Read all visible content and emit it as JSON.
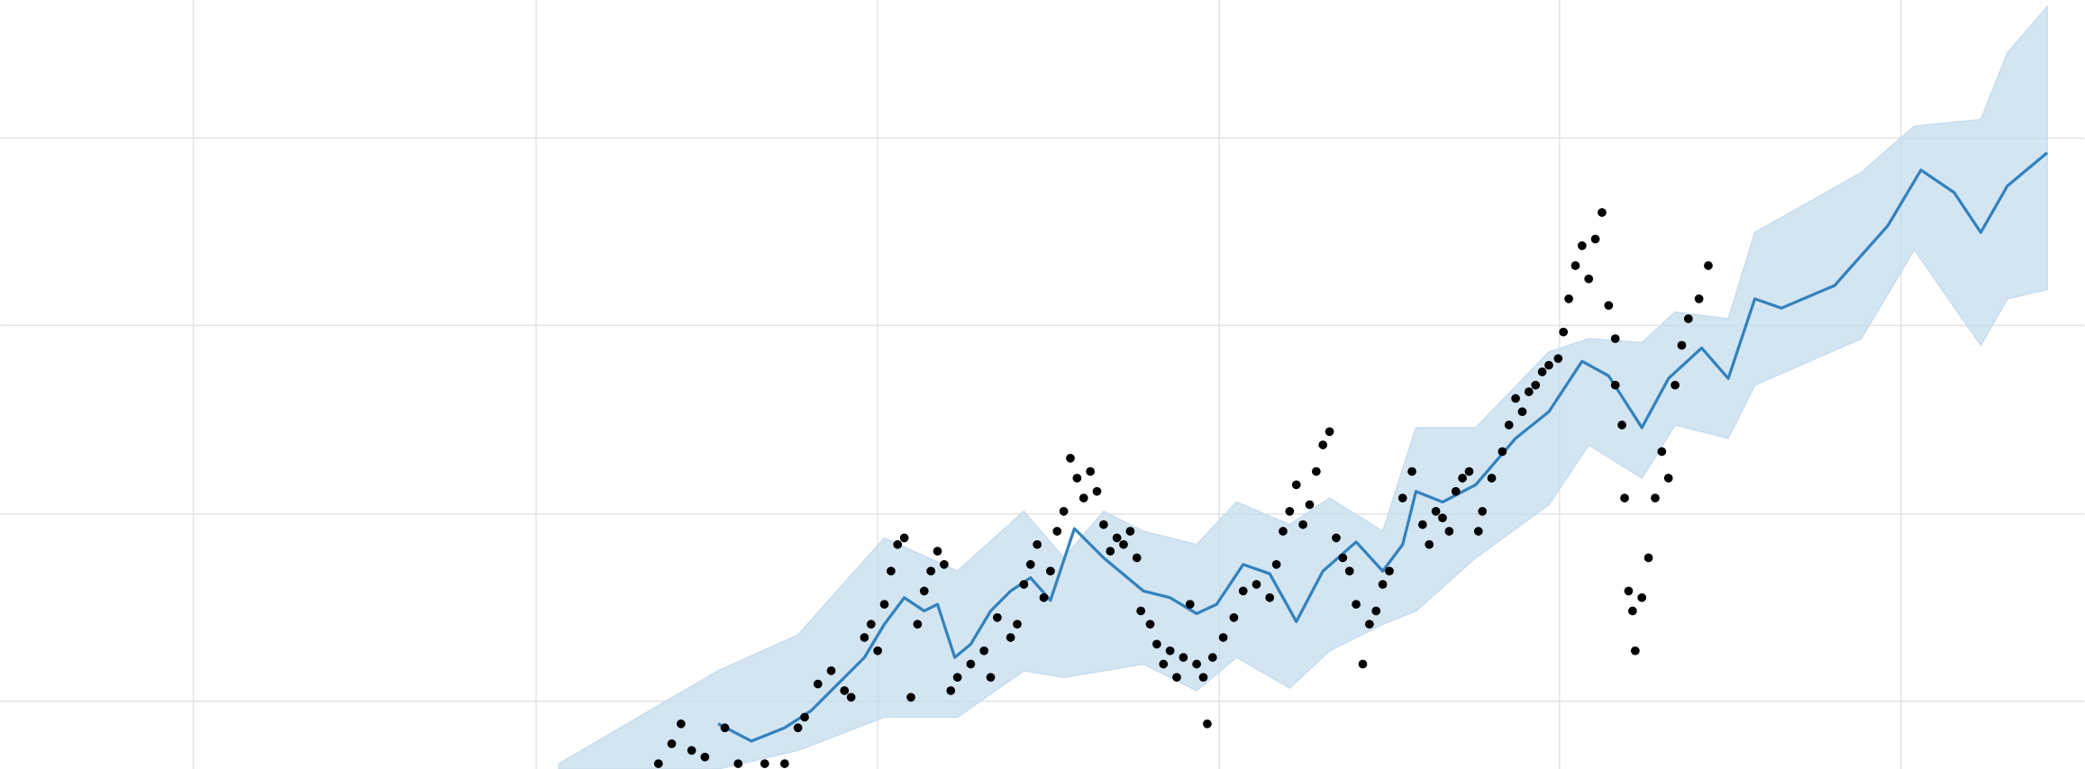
{
  "chart_data": {
    "type": "forecast",
    "xlim": [
      0,
      1568
    ],
    "ylim": [
      0,
      579
    ],
    "xticks": [
      145,
      403,
      660,
      917,
      1173,
      1430
    ],
    "yticks": [
      51,
      192,
      334,
      475
    ],
    "grid": true,
    "x": [
      540,
      565,
      590,
      610,
      630,
      650,
      665,
      680,
      695,
      705,
      718,
      730,
      745,
      760,
      775,
      790,
      808,
      830,
      860,
      880,
      900,
      915,
      935,
      955,
      975,
      995,
      1020,
      1040,
      1055,
      1065,
      1085,
      1110,
      1140,
      1165,
      1190,
      1210,
      1235,
      1255,
      1280,
      1300,
      1320,
      1340,
      1380,
      1420,
      1445,
      1470,
      1490,
      1510,
      1540
    ],
    "values": [
      34,
      21,
      31,
      44,
      64,
      84,
      109,
      129,
      119,
      124,
      84,
      94,
      119,
      134,
      144,
      127,
      181,
      159,
      134,
      129,
      117,
      124,
      154,
      147,
      111,
      149,
      171,
      149,
      169,
      209,
      201,
      214,
      249,
      269,
      307,
      296,
      257,
      294,
      317,
      294,
      354,
      347,
      364,
      409,
      451,
      434,
      404,
      439,
      464
    ],
    "color": "#3282bd",
    "band": {
      "color": "#c6dcee",
      "x": [
        420,
        540,
        600,
        665,
        720,
        770,
        800,
        830,
        860,
        900,
        930,
        970,
        1000,
        1040,
        1065,
        1110,
        1165,
        1195,
        1235,
        1260,
        1300,
        1320,
        1400,
        1440,
        1490,
        1510,
        1540
      ],
      "upper": [
        4,
        74,
        101,
        174,
        149,
        194,
        159,
        194,
        179,
        169,
        201,
        184,
        204,
        179,
        257,
        257,
        314,
        324,
        321,
        344,
        339,
        404,
        449,
        484,
        489,
        539,
        574
      ],
      "lower": [
        0,
        0,
        14,
        39,
        39,
        74,
        69,
        74,
        79,
        59,
        84,
        61,
        89,
        109,
        119,
        159,
        199,
        244,
        219,
        259,
        249,
        289,
        324,
        391,
        319,
        354,
        361
      ]
    },
    "points": {
      "color": "#000000",
      "x": [
        495,
        505,
        512,
        520,
        530,
        545,
        555,
        575,
        590,
        600,
        605,
        615,
        625,
        635,
        640,
        650,
        655,
        660,
        665,
        670,
        675,
        680,
        685,
        690,
        695,
        700,
        705,
        710,
        715,
        720,
        730,
        740,
        745,
        750,
        760,
        765,
        770,
        775,
        780,
        785,
        790,
        795,
        800,
        805,
        810,
        815,
        820,
        825,
        830,
        835,
        840,
        845,
        850,
        855,
        858,
        865,
        870,
        875,
        880,
        885,
        890,
        895,
        900,
        905,
        908,
        912,
        920,
        928,
        935,
        945,
        955,
        960,
        965,
        970,
        975,
        980,
        985,
        990,
        995,
        1000,
        1005,
        1010,
        1015,
        1020,
        1025,
        1030,
        1035,
        1040,
        1045,
        1055,
        1062,
        1070,
        1075,
        1080,
        1085,
        1090,
        1095,
        1100,
        1105,
        1112,
        1115,
        1122,
        1130,
        1135,
        1140,
        1145,
        1150,
        1155,
        1160,
        1165,
        1172,
        1176,
        1180,
        1185,
        1190,
        1195,
        1200,
        1205,
        1210,
        1215,
        1215,
        1220,
        1222,
        1225,
        1228,
        1230,
        1235,
        1240,
        1245,
        1250,
        1255,
        1260,
        1265,
        1270,
        1278,
        1285
      ],
      "y": [
        4,
        19,
        34,
        14,
        9,
        31,
        4,
        4,
        4,
        31,
        39,
        64,
        74,
        59,
        54,
        99,
        109,
        89,
        124,
        149,
        169,
        174,
        54,
        109,
        134,
        149,
        164,
        154,
        59,
        69,
        79,
        89,
        69,
        114,
        99,
        109,
        139,
        154,
        169,
        129,
        149,
        179,
        194,
        234,
        219,
        204,
        224,
        209,
        184,
        164,
        174,
        169,
        179,
        159,
        119,
        109,
        94,
        79,
        89,
        69,
        84,
        124,
        79,
        69,
        34,
        84,
        99,
        114,
        134,
        139,
        129,
        154,
        179,
        194,
        214,
        184,
        199,
        224,
        244,
        254,
        174,
        159,
        149,
        124,
        79,
        109,
        119,
        139,
        149,
        204,
        224,
        184,
        169,
        194,
        189,
        179,
        209,
        219,
        224,
        179,
        194,
        219,
        239,
        259,
        279,
        269,
        284,
        289,
        299,
        304,
        309,
        329,
        354,
        379,
        394,
        369,
        399,
        419,
        349,
        324,
        289,
        259,
        204,
        134,
        119,
        89,
        129,
        159,
        204,
        239,
        219,
        289,
        319,
        339,
        354,
        379
      ]
    }
  }
}
